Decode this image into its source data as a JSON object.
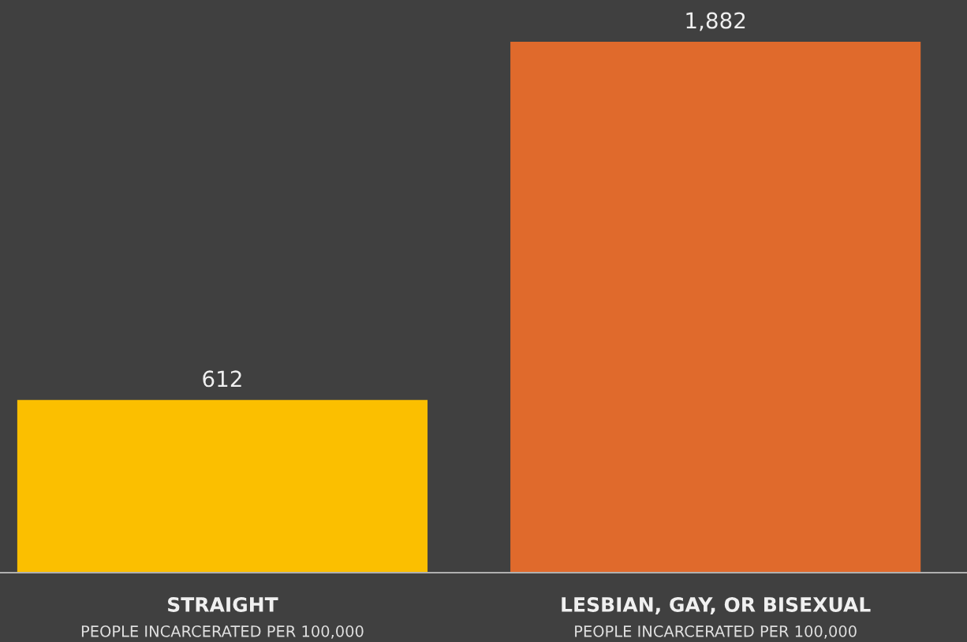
{
  "chart_data": {
    "type": "bar",
    "categories": [
      "STRAIGHT\nPEOPLE INCARCERATED PER 100,000",
      "LESBIAN, GAY, OR BISEXUAL\nPEOPLE INCARCERATED PER 100,000"
    ],
    "values": [
      612,
      1882
    ],
    "colors": [
      "#fbbf00",
      "#e06a2c"
    ],
    "ylim": [
      0,
      2030
    ],
    "value_labels": [
      "612",
      "1,882"
    ],
    "tick_labels": "x",
    "grid": false,
    "legend": false
  }
}
